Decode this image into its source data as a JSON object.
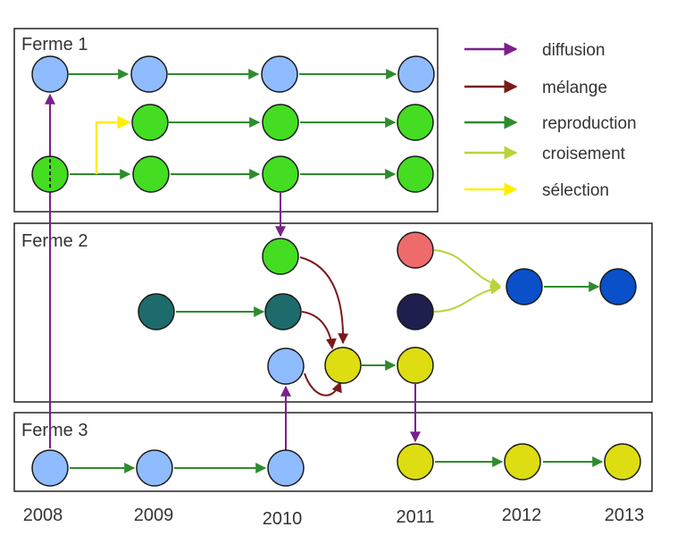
{
  "farms": [
    {
      "id": "f1",
      "label": "Ferme 1"
    },
    {
      "id": "f2",
      "label": "Ferme 2"
    },
    {
      "id": "f3",
      "label": "Ferme 3"
    }
  ],
  "years": [
    "2008",
    "2009",
    "2010",
    "2011",
    "2012",
    "2013"
  ],
  "legend": [
    {
      "type": "diffusion",
      "label": "diffusion",
      "color": "#7a1f8c"
    },
    {
      "type": "melange",
      "label": "mélange",
      "color": "#7a1a1a"
    },
    {
      "type": "reproduction",
      "label": "reproduction",
      "color": "#2e8b2e"
    },
    {
      "type": "croisement",
      "label": "croisement",
      "color": "#b8d43a"
    },
    {
      "type": "selection",
      "label": "sélection",
      "color": "#ffee00"
    }
  ],
  "node_colors": {
    "light_blue": "#8fbcff",
    "bright_green": "#44dd22",
    "teal": "#1e6b6b",
    "yellow": "#dddd11",
    "salmon": "#ee6b6b",
    "navy": "#1f1f4f",
    "blue": "#0a50c8"
  }
}
